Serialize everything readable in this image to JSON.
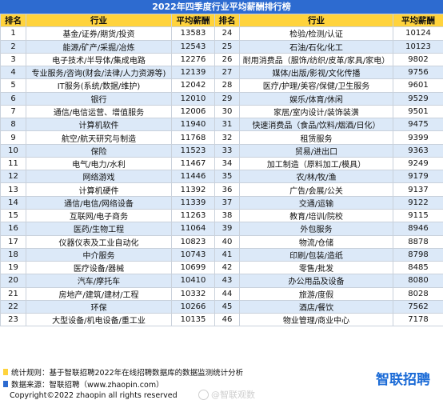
{
  "title": "2022年四季度行业平均薪酬排行榜",
  "headers": [
    "排名",
    "行业",
    "平均薪酬",
    "排名",
    "行业",
    "平均薪酬"
  ],
  "rows": [
    {
      "rank_l": "1",
      "ind_l": "基金/证券/期货/投资",
      "sal_l": "13583",
      "rank_r": "24",
      "ind_r": "检验/检测/认证",
      "sal_r": "10124"
    },
    {
      "rank_l": "2",
      "ind_l": "能源/矿产/采掘/冶炼",
      "sal_l": "12543",
      "rank_r": "25",
      "ind_r": "石油/石化/化工",
      "sal_r": "10123"
    },
    {
      "rank_l": "3",
      "ind_l": "电子技术/半导体/集成电路",
      "sal_l": "12276",
      "rank_r": "26",
      "ind_r": "耐用消费品（服饰/纺织/皮革/家具/家电）",
      "sal_r": "9802"
    },
    {
      "rank_l": "4",
      "ind_l": "专业服务/咨询(财会/法律/人力资源等)",
      "sal_l": "12139",
      "rank_r": "27",
      "ind_r": "媒体/出版/影视/文化传播",
      "sal_r": "9756"
    },
    {
      "rank_l": "5",
      "ind_l": "IT服务(系统/数据/维护)",
      "sal_l": "12042",
      "rank_r": "28",
      "ind_r": "医疗/护理/美容/保健/卫生服务",
      "sal_r": "9601"
    },
    {
      "rank_l": "6",
      "ind_l": "银行",
      "sal_l": "12010",
      "rank_r": "29",
      "ind_r": "娱乐/体育/休闲",
      "sal_r": "9529"
    },
    {
      "rank_l": "7",
      "ind_l": "通信/电信运营、增值服务",
      "sal_l": "12006",
      "rank_r": "30",
      "ind_r": "家居/室内设计/装饰装潢",
      "sal_r": "9501"
    },
    {
      "rank_l": "8",
      "ind_l": "计算机软件",
      "sal_l": "11940",
      "rank_r": "31",
      "ind_r": "快速消费品（食品/饮料/烟酒/日化）",
      "sal_r": "9475"
    },
    {
      "rank_l": "9",
      "ind_l": "航空/航天研究与制造",
      "sal_l": "11768",
      "rank_r": "32",
      "ind_r": "租赁服务",
      "sal_r": "9399"
    },
    {
      "rank_l": "10",
      "ind_l": "保险",
      "sal_l": "11523",
      "rank_r": "33",
      "ind_r": "贸易/进出口",
      "sal_r": "9363"
    },
    {
      "rank_l": "11",
      "ind_l": "电气/电力/水利",
      "sal_l": "11467",
      "rank_r": "34",
      "ind_r": "加工制造（原料加工/模具）",
      "sal_r": "9249"
    },
    {
      "rank_l": "12",
      "ind_l": "网络游戏",
      "sal_l": "11446",
      "rank_r": "35",
      "ind_r": "农/林/牧/渔",
      "sal_r": "9179"
    },
    {
      "rank_l": "13",
      "ind_l": "计算机硬件",
      "sal_l": "11392",
      "rank_r": "36",
      "ind_r": "广告/会展/公关",
      "sal_r": "9137"
    },
    {
      "rank_l": "14",
      "ind_l": "通信/电信/网络设备",
      "sal_l": "11339",
      "rank_r": "37",
      "ind_r": "交通/运输",
      "sal_r": "9122"
    },
    {
      "rank_l": "15",
      "ind_l": "互联网/电子商务",
      "sal_l": "11263",
      "rank_r": "38",
      "ind_r": "教育/培训/院校",
      "sal_r": "9115"
    },
    {
      "rank_l": "16",
      "ind_l": "医药/生物工程",
      "sal_l": "11064",
      "rank_r": "39",
      "ind_r": "外包服务",
      "sal_r": "8946"
    },
    {
      "rank_l": "17",
      "ind_l": "仪器仪表及工业自动化",
      "sal_l": "10823",
      "rank_r": "40",
      "ind_r": "物流/仓储",
      "sal_r": "8878"
    },
    {
      "rank_l": "18",
      "ind_l": "中介服务",
      "sal_l": "10743",
      "rank_r": "41",
      "ind_r": "印刷/包装/造纸",
      "sal_r": "8798"
    },
    {
      "rank_l": "19",
      "ind_l": "医疗设备/器械",
      "sal_l": "10699",
      "rank_r": "42",
      "ind_r": "零售/批发",
      "sal_r": "8485"
    },
    {
      "rank_l": "20",
      "ind_l": "汽车/摩托车",
      "sal_l": "10410",
      "rank_r": "43",
      "ind_r": "办公用品及设备",
      "sal_r": "8080"
    },
    {
      "rank_l": "21",
      "ind_l": "房地产/建筑/建材/工程",
      "sal_l": "10332",
      "rank_r": "44",
      "ind_r": "旅游/度假",
      "sal_r": "8028"
    },
    {
      "rank_l": "22",
      "ind_l": "环保",
      "sal_l": "10266",
      "rank_r": "45",
      "ind_r": "酒店/餐饮",
      "sal_r": "7562"
    },
    {
      "rank_l": "23",
      "ind_l": "大型设备/机电设备/重工业",
      "sal_l": "10135",
      "rank_r": "46",
      "ind_r": "物业管理/商业中心",
      "sal_r": "7178"
    }
  ],
  "footer": {
    "note1": "统计规则：基于智联招聘2022年在线招聘数据库的数据监测统计分析",
    "note2": "数据来源：智联招聘（www.zhaopin.com）",
    "copyright": "Copyright©2022 zhaopin all rights reserved",
    "logo": "智联招聘",
    "watermark": "@智联观数"
  },
  "colors": {
    "title_bg": "#2d6bd0",
    "header_bg": "#ffd33c",
    "stripe": "#dce9f8",
    "note1_mark": "#ffd33c",
    "note2_mark": "#2d6bd0"
  }
}
